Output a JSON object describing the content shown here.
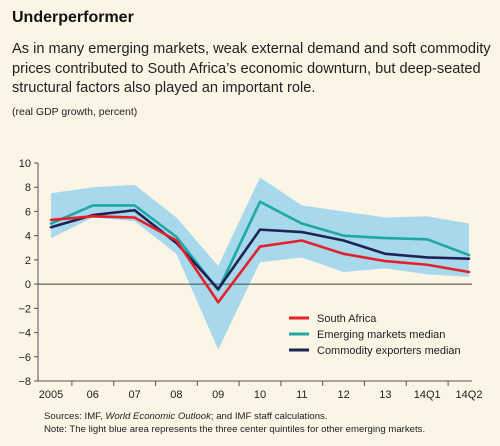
{
  "header": {
    "title": "Underperformer",
    "subtitle": "As in many emerging markets, weak external demand and soft commodity prices contributed to South Africa’s economic downturn, but deep-seated structural factors also played an important role.",
    "units": "(real GDP growth, percent)"
  },
  "footer": {
    "source_prefix": "Sources: IMF, ",
    "source_italic": "World Economic Outlook",
    "source_suffix": "; and IMF staff calculations.",
    "note": "Note: The light blue area represents the three center quintiles for other emerging markets."
  },
  "colors": {
    "south_africa": "#e4202a",
    "emerging": "#1fa8a4",
    "commodity": "#1b2454",
    "band": "#a8d8ec",
    "background": "#fbf5e6"
  },
  "chart_data": {
    "type": "line",
    "categories": [
      "2005",
      "06",
      "07",
      "08",
      "09",
      "10",
      "11",
      "12",
      "13",
      "14Q1",
      "14Q2"
    ],
    "ylim": [
      -8,
      10
    ],
    "yticks": [
      -8,
      -6,
      -4,
      -2,
      0,
      2,
      4,
      6,
      8,
      10
    ],
    "grid": false,
    "legend_position": "bottom-right",
    "series": [
      {
        "name": "South Africa",
        "color": "#e4202a",
        "values": [
          5.3,
          5.6,
          5.5,
          3.6,
          -1.5,
          3.1,
          3.6,
          2.5,
          1.9,
          1.6,
          1.0
        ]
      },
      {
        "name": "Emerging markets median",
        "color": "#1fa8a4",
        "values": [
          5.0,
          6.5,
          6.5,
          3.9,
          -0.5,
          6.8,
          5.0,
          4.0,
          3.8,
          3.7,
          2.4
        ]
      },
      {
        "name": "Commodity exporters median",
        "color": "#1b2454",
        "values": [
          4.7,
          5.7,
          6.1,
          3.4,
          -0.4,
          4.5,
          4.3,
          3.6,
          2.5,
          2.2,
          2.1
        ]
      }
    ],
    "band": {
      "upper": [
        7.5,
        8.0,
        8.2,
        5.5,
        1.5,
        8.8,
        6.5,
        6.0,
        5.5,
        5.6,
        5.0
      ],
      "lower": [
        3.8,
        5.5,
        5.2,
        2.5,
        -5.4,
        1.8,
        2.2,
        1.0,
        1.3,
        0.8,
        0.6
      ]
    }
  }
}
